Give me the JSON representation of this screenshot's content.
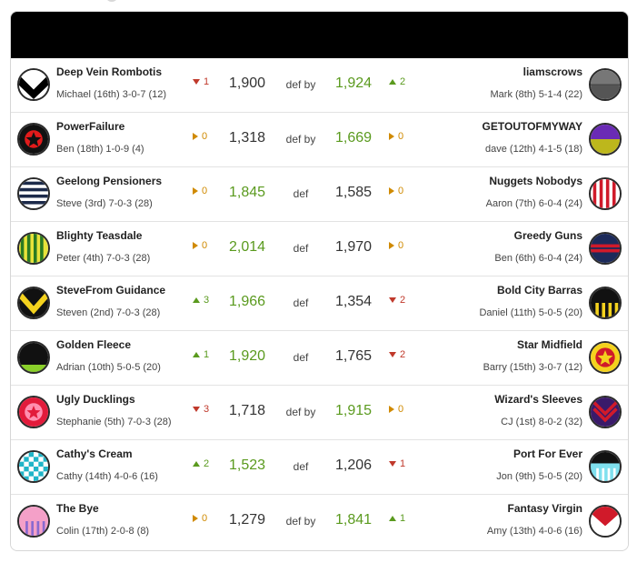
{
  "colors": {
    "win": "#5a9a1e",
    "up": "#5a9a1e",
    "down": "#c0392b",
    "same": "#d08a00"
  },
  "matches": [
    {
      "left": {
        "name": "Deep Vein Rombotis",
        "meta": "Michael (16th) 3-0-7 (12)",
        "jersey": "vee-black-teal",
        "move": "down",
        "change": "1",
        "score": "1,900"
      },
      "result": "def by",
      "right": {
        "name": "liamscrows",
        "meta": "Mark (8th) 5-1-4 (22)",
        "jersey": "grey-half",
        "move": "up",
        "change": "2",
        "score": "1,924"
      }
    },
    {
      "left": {
        "name": "PowerFailure",
        "meta": "Ben (18th) 1-0-9 (4)",
        "jersey": "red-star-black",
        "move": "same",
        "change": "0",
        "score": "1,318"
      },
      "result": "def by",
      "right": {
        "name": "GETOUTOFMYWAY",
        "meta": "dave (12th) 4-1-5 (18)",
        "jersey": "purple-olive",
        "move": "same",
        "change": "0",
        "score": "1,669"
      }
    },
    {
      "left": {
        "name": "Geelong Pensioners",
        "meta": "Steve (3rd) 7-0-3 (28)",
        "jersey": "navy-hoops",
        "move": "same",
        "change": "0",
        "score": "1,845"
      },
      "result": "def",
      "right": {
        "name": "Nuggets Nobodys",
        "meta": "Aaron (7th) 6-0-4 (24)",
        "jersey": "red-white-stripes",
        "move": "same",
        "change": "0",
        "score": "1,585"
      }
    },
    {
      "left": {
        "name": "Blighty Teasdale",
        "meta": "Peter (4th) 7-0-3 (28)",
        "jersey": "green-yellow-stripes",
        "move": "same",
        "change": "0",
        "score": "2,014"
      },
      "result": "def",
      "right": {
        "name": "Greedy Guns",
        "meta": "Ben (6th) 6-0-4 (24)",
        "jersey": "navy-red-band",
        "move": "same",
        "change": "0",
        "score": "1,970"
      }
    },
    {
      "left": {
        "name": "SteveFrom Guidance",
        "meta": "Steven (2nd) 7-0-3 (28)",
        "jersey": "yellow-vee-black",
        "move": "up",
        "change": "3",
        "score": "1,966"
      },
      "result": "def",
      "right": {
        "name": "Bold City Barras",
        "meta": "Daniel (11th) 5-0-5 (20)",
        "jersey": "black-yellow-bars",
        "move": "down",
        "change": "2",
        "score": "1,354"
      }
    },
    {
      "left": {
        "name": "Golden Fleece",
        "meta": "Adrian (10th) 5-0-5 (20)",
        "jersey": "black-green-base",
        "move": "up",
        "change": "1",
        "score": "1,920"
      },
      "result": "def",
      "right": {
        "name": "Star Midfield",
        "meta": "Barry (15th) 3-0-7 (12)",
        "jersey": "yellow-red-star",
        "move": "down",
        "change": "2",
        "score": "1,765"
      }
    },
    {
      "left": {
        "name": "Ugly Ducklings",
        "meta": "Stephanie (5th) 7-0-3 (28)",
        "jersey": "red-pink-star",
        "move": "down",
        "change": "3",
        "score": "1,718"
      },
      "result": "def by",
      "right": {
        "name": "Wizard's Sleeves",
        "meta": "CJ (1st) 8-0-2 (32)",
        "jersey": "purple-chevrons",
        "move": "same",
        "change": "0",
        "score": "1,915"
      }
    },
    {
      "left": {
        "name": "Cathy's Cream",
        "meta": "Cathy (14th) 4-0-6 (16)",
        "jersey": "teal-checks",
        "move": "up",
        "change": "2",
        "score": "1,523"
      },
      "result": "def",
      "right": {
        "name": "Port For Ever",
        "meta": "Jon (9th) 5-0-5 (20)",
        "jersey": "black-cyan-white",
        "move": "down",
        "change": "1",
        "score": "1,206"
      }
    },
    {
      "left": {
        "name": "The Bye",
        "meta": "Colin (17th) 2-0-8 (8)",
        "jersey": "pink-purple-stripes",
        "move": "same",
        "change": "0",
        "score": "1,279"
      },
      "result": "def by",
      "right": {
        "name": "Fantasy Virgin",
        "meta": "Amy (13th) 4-0-6 (16)",
        "jersey": "red-vee-white",
        "move": "up",
        "change": "1",
        "score": "1,841"
      }
    }
  ]
}
